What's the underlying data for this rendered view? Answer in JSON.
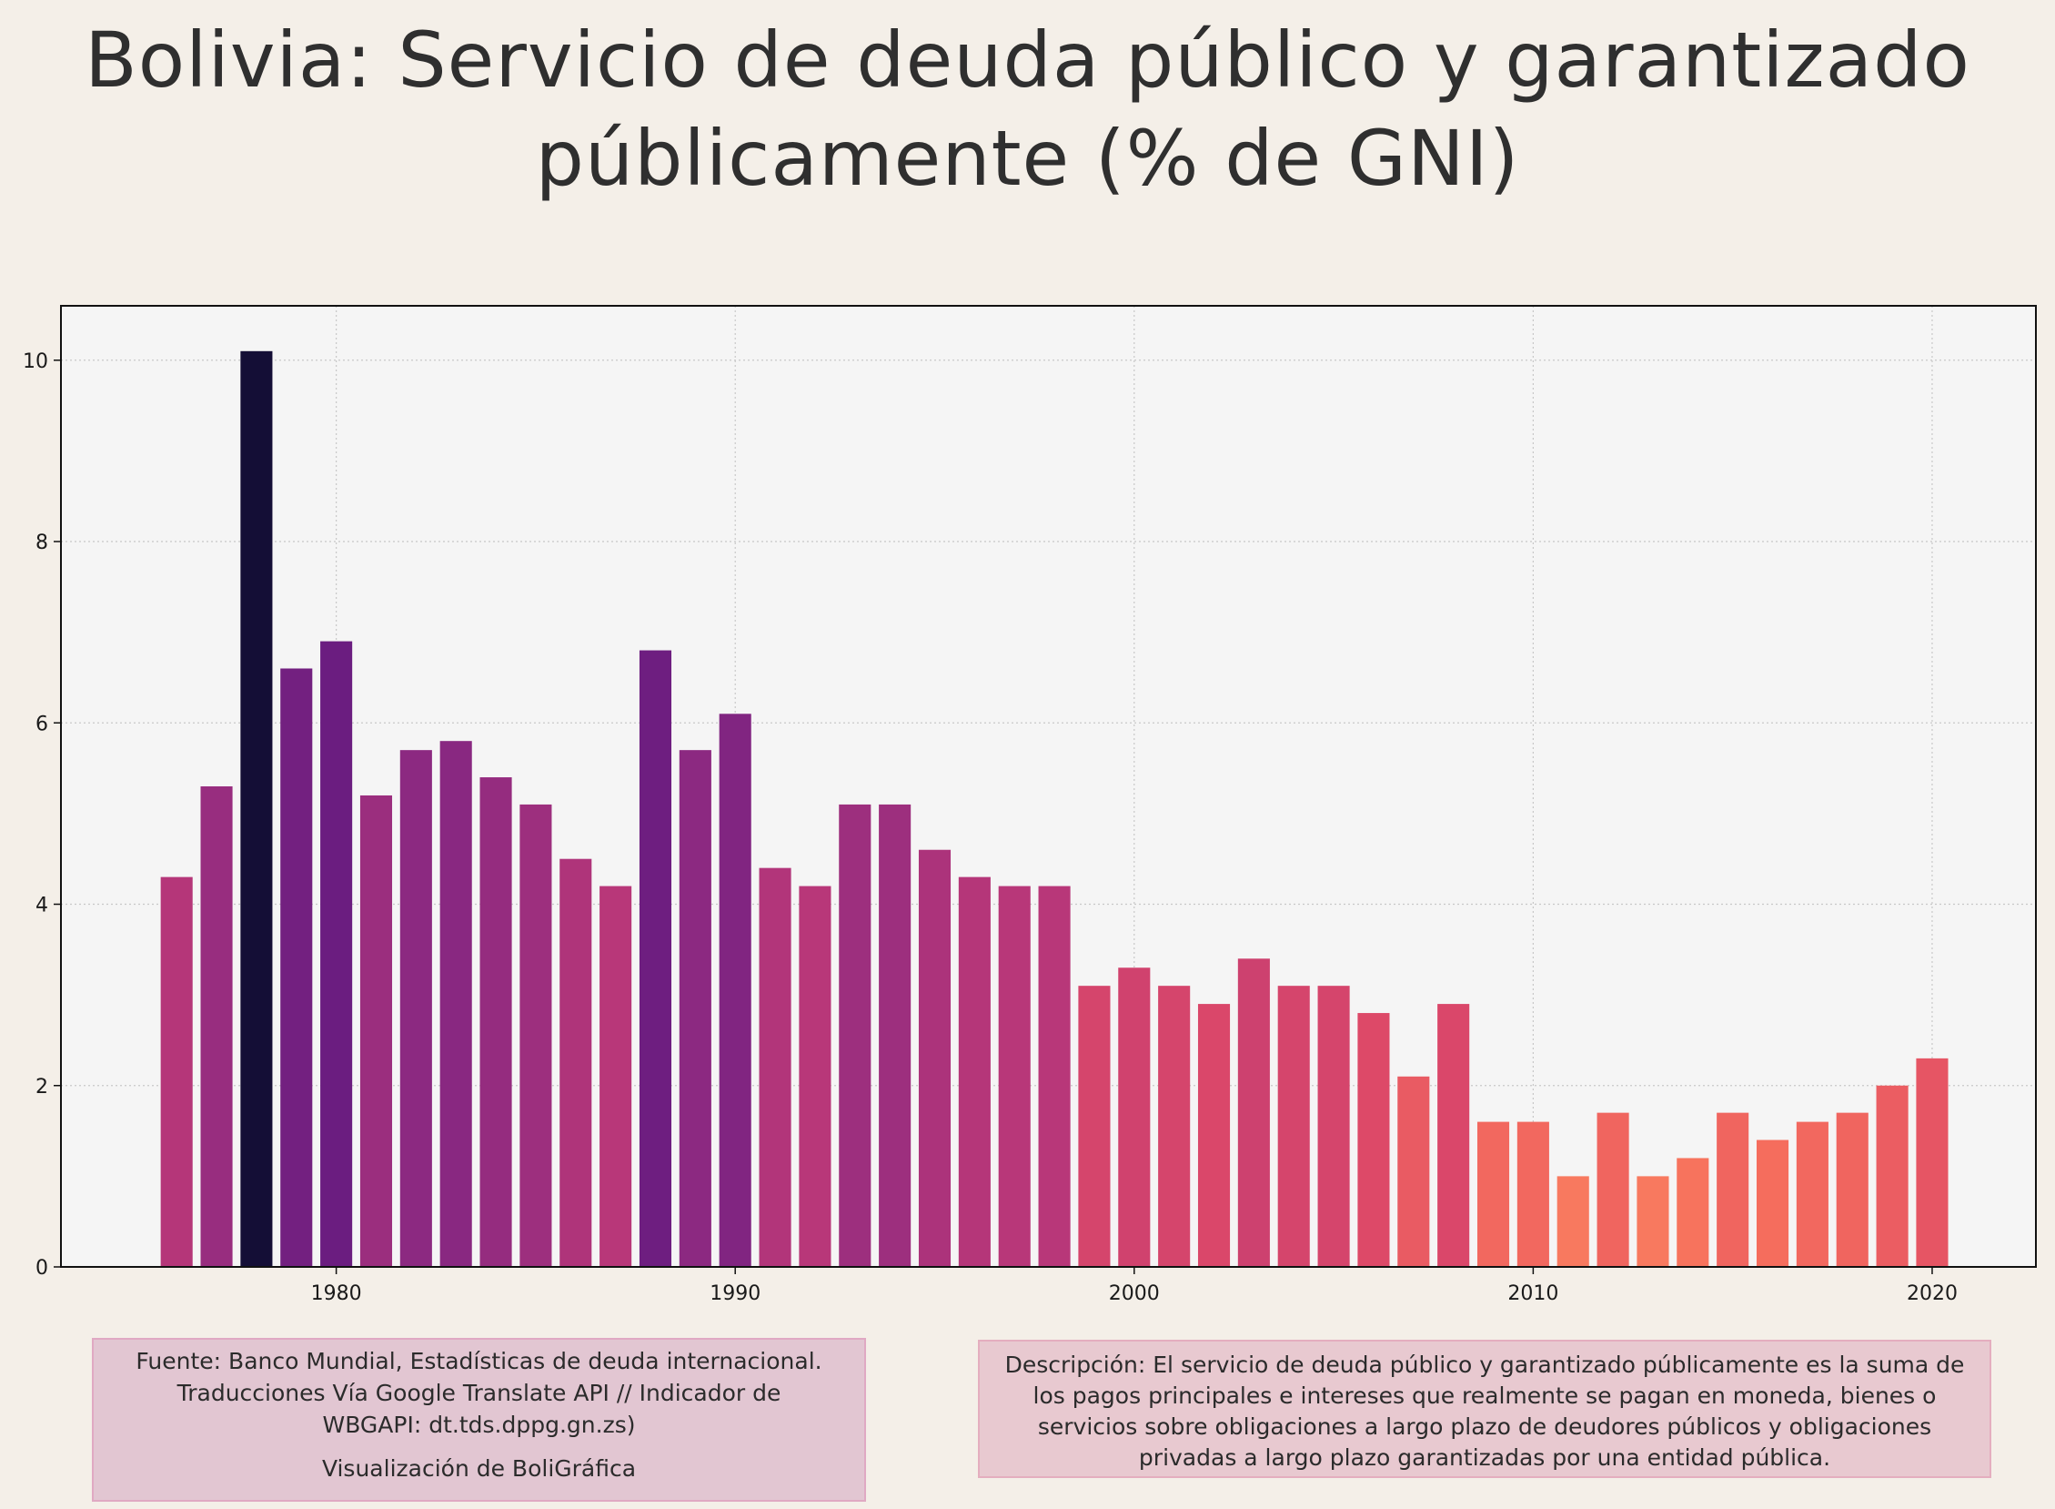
{
  "title_lines": [
    "Bolivia:  Servicio de deuda público y garantizado",
    "públicamente (% de GNI)"
  ],
  "source_box": {
    "line1": "Fuente: Banco Mundial, Estadísticas de deuda internacional.",
    "line2": "Traducciones Vía Google Translate API // Indicador de",
    "line3": "WBGAPI: dt.tds.dppg.gn.zs)",
    "credit": "Visualización de BoliGráfica"
  },
  "description_box": {
    "text": "Descripción: El servicio de deuda público y garantizado públicamente es la suma de los pagos principales e intereses que realmente se pagan en moneda, bienes o servicios sobre obligaciones a largo plazo de deudores públicos y obligaciones privadas a largo plazo garantizadas por una entidad pública."
  },
  "chart_data": {
    "type": "bar",
    "x": [
      1976,
      1977,
      1978,
      1979,
      1980,
      1981,
      1982,
      1983,
      1984,
      1985,
      1986,
      1987,
      1988,
      1989,
      1990,
      1991,
      1992,
      1993,
      1994,
      1995,
      1996,
      1997,
      1998,
      1999,
      2000,
      2001,
      2002,
      2003,
      2004,
      2005,
      2006,
      2007,
      2008,
      2009,
      2010,
      2011,
      2012,
      2013,
      2014,
      2015,
      2016,
      2017,
      2018,
      2019,
      2020
    ],
    "values": [
      4.3,
      5.3,
      10.1,
      6.6,
      6.9,
      5.2,
      5.7,
      5.8,
      5.4,
      5.1,
      4.5,
      4.2,
      6.8,
      5.7,
      6.1,
      4.4,
      4.2,
      5.1,
      5.1,
      4.6,
      4.3,
      4.2,
      4.2,
      3.1,
      3.3,
      3.1,
      2.9,
      3.4,
      3.1,
      3.1,
      2.8,
      2.1,
      2.9,
      1.6,
      1.6,
      1.0,
      1.7,
      1.0,
      1.2,
      1.7,
      1.4,
      1.6,
      1.7,
      2.0,
      2.3
    ],
    "xticks": [
      1980,
      1990,
      2000,
      2010,
      2020
    ],
    "yticks": [
      0,
      2,
      4,
      6,
      8,
      10
    ],
    "xlim": [
      1973.1,
      2022.6
    ],
    "ylim": [
      0,
      10.6
    ],
    "xlabel": "",
    "ylabel": "",
    "grid": true,
    "colormap": "magma (bar color by value)",
    "colors": {
      "background": "#f4efe8",
      "plot_background": "#f5f5f5",
      "grid": "#c8c8c8",
      "axis": "#111111"
    }
  }
}
